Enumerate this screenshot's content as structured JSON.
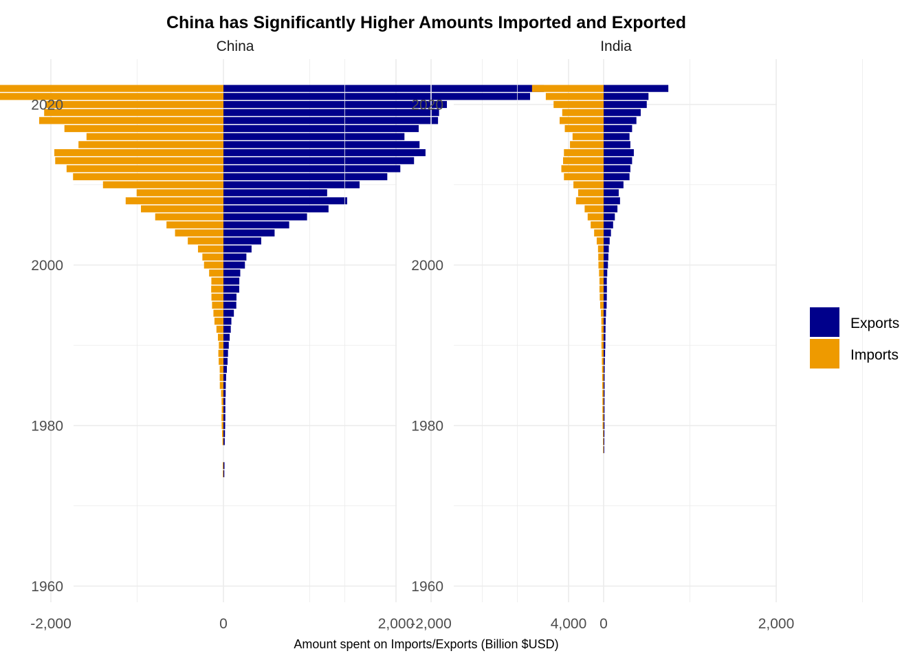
{
  "chart_data": {
    "type": "bar",
    "orientation": "horizontal",
    "title": "China has Significantly Higher Amounts Imported and Exported",
    "xlabel": "Amount spent on Imports/Exports (Billion $USD)",
    "ylabel": "",
    "xlim": [
      -3100,
      4000
    ],
    "ylim": [
      1956,
      2025
    ],
    "x_ticks": [
      -2000,
      0,
      2000,
      4000
    ],
    "x_tick_labels": [
      "-2,000",
      "0",
      "2,000",
      "4,000"
    ],
    "y_ticks": [
      1960,
      1980,
      2000,
      2020
    ],
    "y_tick_labels": [
      "1960",
      "1980",
      "2000",
      "2020"
    ],
    "grid": true,
    "legend": {
      "position": "right",
      "entries": [
        {
          "name": "Exports",
          "color": "#00008B"
        },
        {
          "name": "Imports",
          "color": "#EE9A00"
        }
      ]
    },
    "panels": [
      {
        "name": "China",
        "years": [
          1974,
          1975,
          1978,
          1979,
          1980,
          1981,
          1982,
          1983,
          1984,
          1985,
          1986,
          1987,
          1988,
          1989,
          1990,
          1991,
          1992,
          1993,
          1994,
          1995,
          1996,
          1997,
          1998,
          1999,
          2000,
          2001,
          2002,
          2003,
          2004,
          2005,
          2006,
          2007,
          2008,
          2009,
          2010,
          2011,
          2012,
          2013,
          2014,
          2015,
          2016,
          2017,
          2018,
          2019,
          2020,
          2021,
          2022
        ],
        "series": [
          {
            "name": "Exports",
            "values": [
              10,
              12,
              15,
              18,
              20,
              22,
              22,
              22,
              26,
              27,
              31,
              40,
              48,
              53,
              62,
              72,
              85,
              92,
              121,
              149,
              151,
              183,
              184,
              195,
              249,
              266,
              326,
              438,
              593,
              762,
              969,
              1218,
              1434,
              1202,
              1578,
              1899,
              2050,
              2209,
              2342,
              2273,
              2098,
              2263,
              2487,
              2499,
              2590,
              3554,
              3715
            ]
          },
          {
            "name": "Imports",
            "values": [
              -7,
              -8,
              -11,
              -16,
              -20,
              -22,
              -19,
              -21,
              -27,
              -42,
              -43,
              -43,
              -55,
              -59,
              -53,
              -64,
              -81,
              -104,
              -116,
              -132,
              -139,
              -142,
              -140,
              -166,
              -225,
              -244,
              -295,
              -413,
              -561,
              -660,
              -791,
              -956,
              -1133,
              -1006,
              -1396,
              -1743,
              -1818,
              -1950,
              -1960,
              -1680,
              -1587,
              -1843,
              -2136,
              -2078,
              -2055,
              -2700,
              -2715
            ]
          }
        ]
      },
      {
        "name": "India",
        "years": [
          1977,
          1978,
          1979,
          1980,
          1981,
          1982,
          1983,
          1984,
          1985,
          1986,
          1987,
          1988,
          1989,
          1990,
          1991,
          1992,
          1993,
          1994,
          1995,
          1996,
          1997,
          1998,
          1999,
          2000,
          2001,
          2002,
          2003,
          2004,
          2005,
          2006,
          2007,
          2008,
          2009,
          2010,
          2011,
          2012,
          2013,
          2014,
          2015,
          2016,
          2017,
          2018,
          2019,
          2020,
          2021,
          2022
        ],
        "series": [
          {
            "name": "Exports",
            "values": [
              7,
              8,
              9,
              10,
              10,
              10,
              10,
              11,
              11,
              11,
              12,
              14,
              17,
              20,
              21,
              22,
              24,
              28,
              35,
              37,
              38,
              37,
              42,
              50,
              55,
              60,
              70,
              85,
              110,
              130,
              160,
              190,
              175,
              230,
              300,
              310,
              330,
              350,
              310,
              300,
              330,
              380,
              430,
              500,
              520,
              750
            ]
          },
          {
            "name": "Imports",
            "values": [
              -6,
              -7,
              -8,
              -12,
              -13,
              -14,
              -14,
              -15,
              -16,
              -17,
              -18,
              -20,
              -22,
              -25,
              -24,
              -25,
              -26,
              -31,
              -40,
              -45,
              -48,
              -48,
              -53,
              -60,
              -62,
              -65,
              -80,
              -110,
              -150,
              -185,
              -220,
              -320,
              -295,
              -350,
              -460,
              -490,
              -470,
              -460,
              -390,
              -360,
              -450,
              -510,
              -480,
              -580,
              -670,
              -830
            ]
          }
        ]
      }
    ]
  }
}
